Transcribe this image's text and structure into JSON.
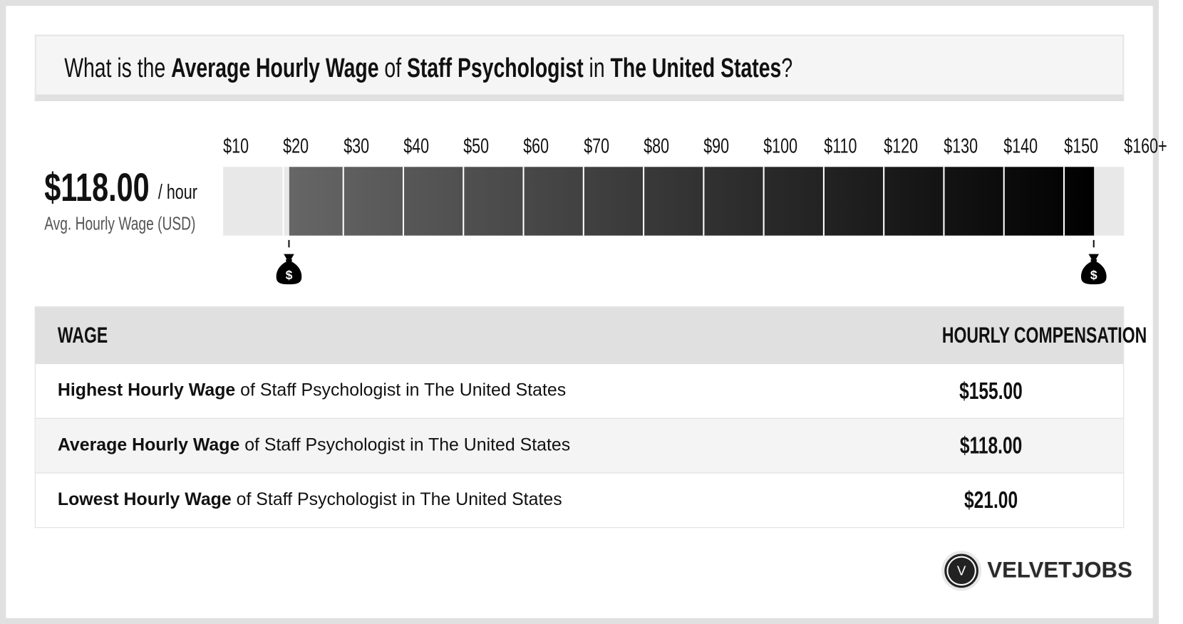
{
  "title": {
    "p1": "What is the ",
    "b1": "Average Hourly Wage",
    "p2": " of ",
    "b2": "Staff Psychologist",
    "p3": " in ",
    "b3": "The United States",
    "p4": "?"
  },
  "summary": {
    "value": "$118.00",
    "unit": "/ hour",
    "label": "Avg. Hourly Wage (USD)"
  },
  "chart_data": {
    "type": "bar",
    "orientation": "horizontal range",
    "ticks": [
      "$10",
      "$20",
      "$30",
      "$40",
      "$50",
      "$60",
      "$70",
      "$80",
      "$90",
      "$100",
      "$110",
      "$120",
      "$130",
      "$140",
      "$150",
      "$160+"
    ],
    "xlim": [
      10,
      160
    ],
    "range": {
      "min": 21,
      "max": 155
    },
    "fill_start": "#666666",
    "fill_end": "#000000",
    "track": "#e8e8e8",
    "markers": [
      {
        "value": 21,
        "icon": "money-bag-icon"
      },
      {
        "value": 155,
        "icon": "money-bag-icon"
      }
    ]
  },
  "table": {
    "headers": [
      "WAGE",
      "HOURLY COMPENSATION"
    ],
    "rows": [
      {
        "bold": "Highest Hourly Wage",
        "rest": " of Staff Psychologist in The United States",
        "value": "$155.00"
      },
      {
        "bold": "Average Hourly Wage",
        "rest": " of Staff Psychologist in The United States",
        "value": "$118.00"
      },
      {
        "bold": "Lowest Hourly Wage",
        "rest": " of Staff Psychologist in The United States",
        "value": "$21.00"
      }
    ]
  },
  "logo": {
    "mark": "V",
    "text": "VELVETJOBS"
  }
}
